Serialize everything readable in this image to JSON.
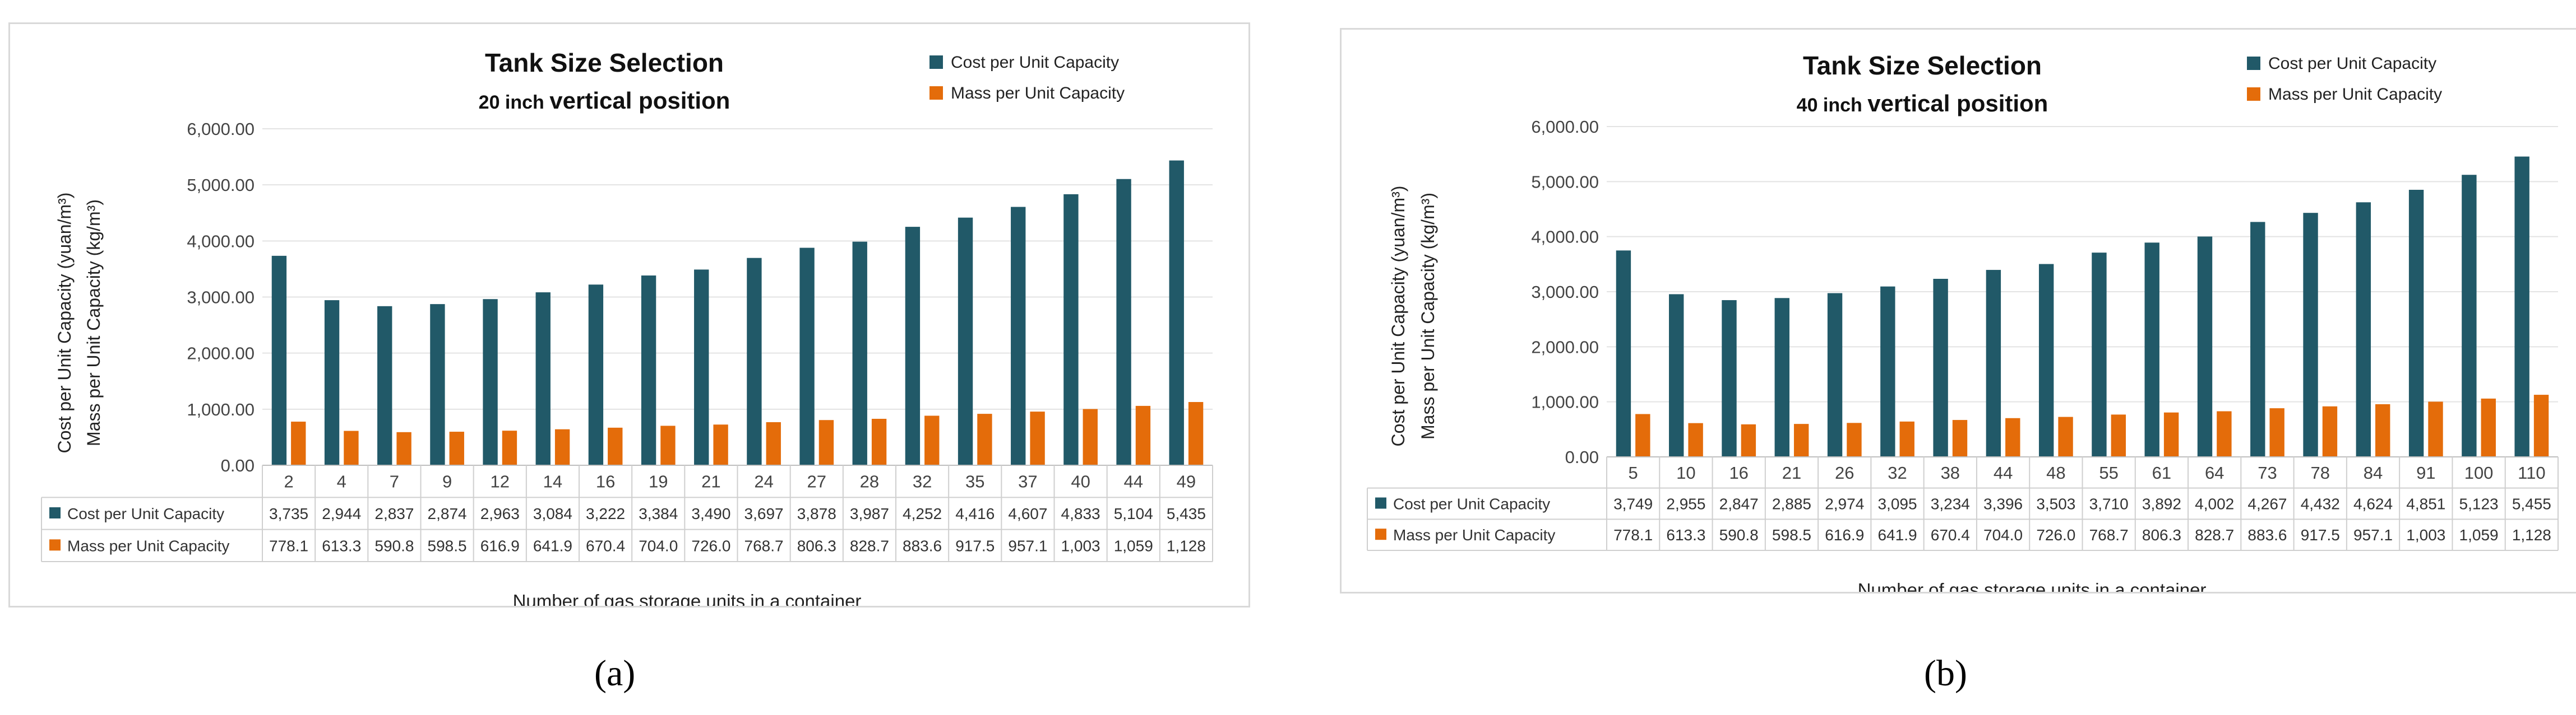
{
  "chart_data": [
    {
      "type": "bar",
      "title": "Tank Size Selection",
      "subtitle_small": "20 inch",
      "subtitle_large": "vertical position",
      "xlabel": "Number of gas storage units in a container",
      "ylabel_line1": "Cost per Unit Capacity  (yuan/m³)",
      "ylabel_line2": "Mass per Unit Capacity  (kg/m³)",
      "ylim": [
        0,
        6000
      ],
      "yticks": [
        "0.00",
        "1,000.00",
        "2,000.00",
        "3,000.00",
        "4,000.00",
        "5,000.00",
        "6,000.00"
      ],
      "legend_position": "top-right",
      "categories": [
        "2",
        "4",
        "7",
        "9",
        "12",
        "14",
        "16",
        "19",
        "21",
        "24",
        "27",
        "28",
        "32",
        "35",
        "37",
        "40",
        "44",
        "49"
      ],
      "series": [
        {
          "name": "Cost per Unit Capacity",
          "color": "#215968",
          "values": [
            3735,
            2944,
            2837,
            2874,
            2963,
            3084,
            3222,
            3384,
            3490,
            3697,
            3878,
            3987,
            4252,
            4416,
            4607,
            4833,
            5104,
            5435
          ],
          "labels": [
            "3,735",
            "2,944",
            "2,837",
            "2,874",
            "2,963",
            "3,084",
            "3,222",
            "3,384",
            "3,490",
            "3,697",
            "3,878",
            "3,987",
            "4,252",
            "4,416",
            "4,607",
            "4,833",
            "5,104",
            "5,435"
          ]
        },
        {
          "name": "Mass per Unit Capacity",
          "color": "#e46c0a",
          "values": [
            778.1,
            613.3,
            590.8,
            598.5,
            616.9,
            641.9,
            670.4,
            704.0,
            726.0,
            768.7,
            806.3,
            828.7,
            883.6,
            917.5,
            957.1,
            1003,
            1059,
            1128
          ],
          "labels": [
            "778.1",
            "613.3",
            "590.8",
            "598.5",
            "616.9",
            "641.9",
            "670.4",
            "704.0",
            "726.0",
            "768.7",
            "806.3",
            "828.7",
            "883.6",
            "917.5",
            "957.1",
            "1,003",
            "1,059",
            "1,128"
          ]
        }
      ]
    },
    {
      "type": "bar",
      "title": "Tank Size Selection",
      "subtitle_small": "40 inch",
      "subtitle_large": "vertical position",
      "xlabel": "Number of gas storage units in a container",
      "ylabel_line1": "Cost per Unit Capacity  (yuan/m³)",
      "ylabel_line2": "Mass per Unit Capacity  (kg/m³)",
      "ylim": [
        0,
        6000
      ],
      "yticks": [
        "0.00",
        "1,000.00",
        "2,000.00",
        "3,000.00",
        "4,000.00",
        "5,000.00",
        "6,000.00"
      ],
      "legend_position": "top-right",
      "categories": [
        "5",
        "10",
        "16",
        "21",
        "26",
        "32",
        "38",
        "44",
        "48",
        "55",
        "61",
        "64",
        "73",
        "78",
        "84",
        "91",
        "100",
        "110"
      ],
      "series": [
        {
          "name": "Cost per Unit Capacity",
          "color": "#215968",
          "values": [
            3749,
            2955,
            2847,
            2885,
            2974,
            3095,
            3234,
            3396,
            3503,
            3710,
            3892,
            4002,
            4267,
            4432,
            4624,
            4851,
            5123,
            5455
          ],
          "labels": [
            "3,749",
            "2,955",
            "2,847",
            "2,885",
            "2,974",
            "3,095",
            "3,234",
            "3,396",
            "3,503",
            "3,710",
            "3,892",
            "4,002",
            "4,267",
            "4,432",
            "4,624",
            "4,851",
            "5,123",
            "5,455"
          ]
        },
        {
          "name": "Mass per Unit Capacity",
          "color": "#e46c0a",
          "values": [
            778.1,
            613.3,
            590.8,
            598.5,
            616.9,
            641.9,
            670.4,
            704.0,
            726.0,
            768.7,
            806.3,
            828.7,
            883.6,
            917.5,
            957.1,
            1003,
            1059,
            1128
          ],
          "labels": [
            "778.1",
            "613.3",
            "590.8",
            "598.5",
            "616.9",
            "641.9",
            "670.4",
            "704.0",
            "726.0",
            "768.7",
            "806.3",
            "828.7",
            "883.6",
            "917.5",
            "957.1",
            "1,003",
            "1,059",
            "1,128"
          ]
        }
      ]
    }
  ],
  "captions": {
    "a": "(a)",
    "b": "(b)"
  }
}
